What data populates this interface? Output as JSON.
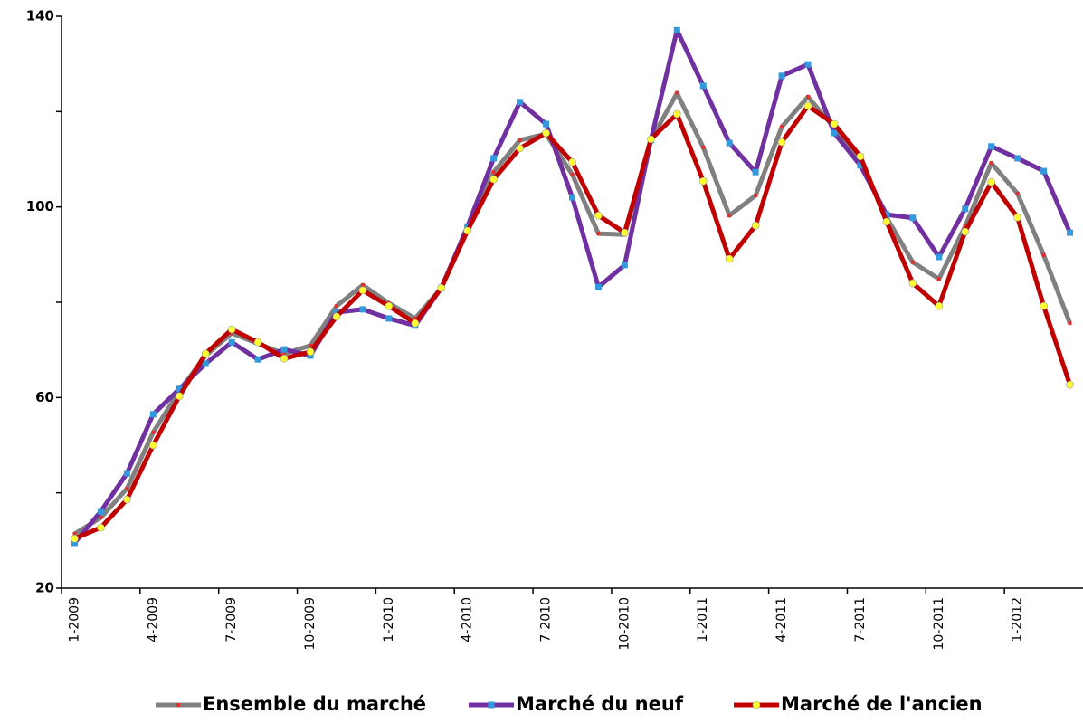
{
  "chart_data": {
    "type": "line",
    "categories": [
      "1-2009",
      null,
      null,
      "4-2009",
      null,
      null,
      "7-2009",
      null,
      null,
      "10-2009",
      null,
      null,
      "1-2010",
      null,
      null,
      "4-2010",
      null,
      null,
      "7-2010",
      null,
      null,
      "10-2010",
      null,
      null,
      "1-2011",
      null,
      null,
      "4-2011",
      null,
      null,
      "7-2011",
      null,
      null,
      "10-2011",
      null,
      null,
      "1-2012",
      null,
      null
    ],
    "series": [
      {
        "name": "Ensemble du marché",
        "color": "#808080",
        "marker_color": "#e03030",
        "marker": "square",
        "values": [
          31.4,
          34.8,
          40.9,
          52.7,
          61.4,
          68.8,
          73.5,
          71.3,
          69.2,
          70.9,
          79.2,
          83.6,
          79.8,
          76.6,
          83.0,
          95.4,
          107.3,
          114.0,
          115.3,
          106.8,
          94.4,
          94.2,
          114.0,
          123.9,
          112.5,
          98.2,
          102.4,
          116.8,
          123.1,
          116.6,
          109.8,
          97.8,
          88.4,
          84.9,
          95.9,
          109.2,
          102.8,
          89.9,
          75.6
        ]
      },
      {
        "name": "Marché du neuf",
        "color": "#7030a0",
        "marker_color": "#3399dd",
        "marker": "square",
        "values": [
          29.5,
          36.1,
          44.1,
          56.5,
          61.8,
          67.1,
          71.6,
          68.0,
          70.1,
          68.8,
          77.9,
          78.5,
          76.6,
          75.1,
          83.0,
          95.9,
          110.2,
          122.0,
          117.4,
          102.0,
          83.2,
          87.8,
          114.0,
          137.1,
          125.4,
          113.4,
          107.3,
          127.5,
          129.9,
          115.5,
          108.7,
          98.4,
          97.7,
          89.5,
          99.6,
          112.7,
          110.2,
          107.5,
          94.6
        ]
      },
      {
        "name": "Marché de l'ancien",
        "color": "#c00000",
        "marker_color": "#ffff33",
        "marker": "circle",
        "values": [
          30.4,
          32.7,
          38.6,
          50.0,
          60.3,
          69.2,
          74.3,
          71.6,
          68.2,
          69.6,
          77.0,
          82.5,
          79.2,
          75.6,
          83.0,
          95.0,
          105.8,
          112.3,
          115.5,
          109.4,
          98.2,
          94.6,
          114.2,
          119.5,
          105.4,
          89.1,
          96.1,
          113.6,
          121.2,
          117.4,
          110.6,
          96.9,
          84.0,
          79.2,
          94.8,
          105.2,
          97.8,
          79.2,
          62.7
        ]
      }
    ],
    "ylim": [
      20,
      140
    ],
    "yticks": [
      20,
      60,
      100,
      140
    ],
    "grid": false,
    "legend": "bottom"
  }
}
